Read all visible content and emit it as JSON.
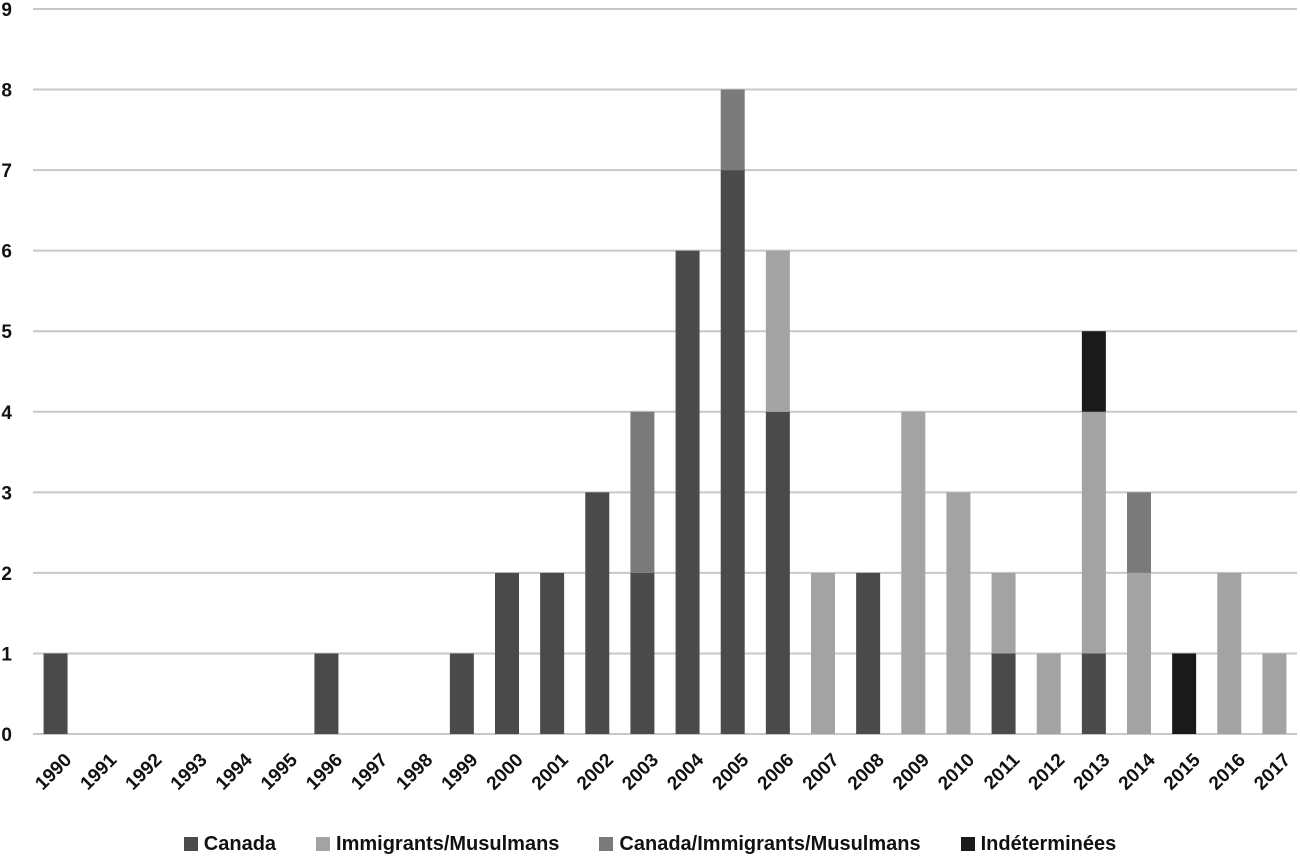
{
  "chart_data": {
    "type": "bar",
    "stacked": true,
    "title": "",
    "xlabel": "",
    "ylabel": "",
    "ylim": [
      0,
      9
    ],
    "yticks": [
      0,
      1,
      2,
      3,
      4,
      5,
      6,
      7,
      8,
      9
    ],
    "grid": true,
    "legend_position": "bottom",
    "categories": [
      "1990",
      "1991",
      "1992",
      "1993",
      "1994",
      "1995",
      "1996",
      "1997",
      "1998",
      "1999",
      "2000",
      "2001",
      "2002",
      "2003",
      "2004",
      "2005",
      "2006",
      "2007",
      "2008",
      "2009",
      "2010",
      "2011",
      "2012",
      "2013",
      "2014",
      "2015",
      "2016",
      "2017"
    ],
    "series": [
      {
        "name": "Canada",
        "color": "#4a4a4a",
        "values": [
          1,
          0,
          0,
          0,
          0,
          0,
          1,
          0,
          0,
          1,
          2,
          2,
          3,
          2,
          6,
          7,
          4,
          0,
          2,
          0,
          0,
          1,
          0,
          1,
          0,
          0,
          0,
          0
        ]
      },
      {
        "name": "Immigrants/Musulmans",
        "color": "#a3a3a3",
        "values": [
          0,
          0,
          0,
          0,
          0,
          0,
          0,
          0,
          0,
          0,
          0,
          0,
          0,
          0,
          0,
          0,
          2,
          2,
          0,
          4,
          3,
          1,
          1,
          3,
          2,
          0,
          2,
          1
        ]
      },
      {
        "name": "Canada/Immigrants/Musulmans",
        "color": "#7a7a7a",
        "values": [
          0,
          0,
          0,
          0,
          0,
          0,
          0,
          0,
          0,
          0,
          0,
          0,
          0,
          2,
          0,
          1,
          0,
          0,
          0,
          0,
          0,
          0,
          0,
          0,
          1,
          0,
          0,
          0
        ]
      },
      {
        "name": "Indéterminées",
        "color": "#1a1a1a",
        "values": [
          0,
          0,
          0,
          0,
          0,
          0,
          0,
          0,
          0,
          0,
          0,
          0,
          0,
          0,
          0,
          0,
          0,
          0,
          0,
          0,
          0,
          0,
          0,
          1,
          0,
          1,
          0,
          0
        ]
      }
    ]
  }
}
